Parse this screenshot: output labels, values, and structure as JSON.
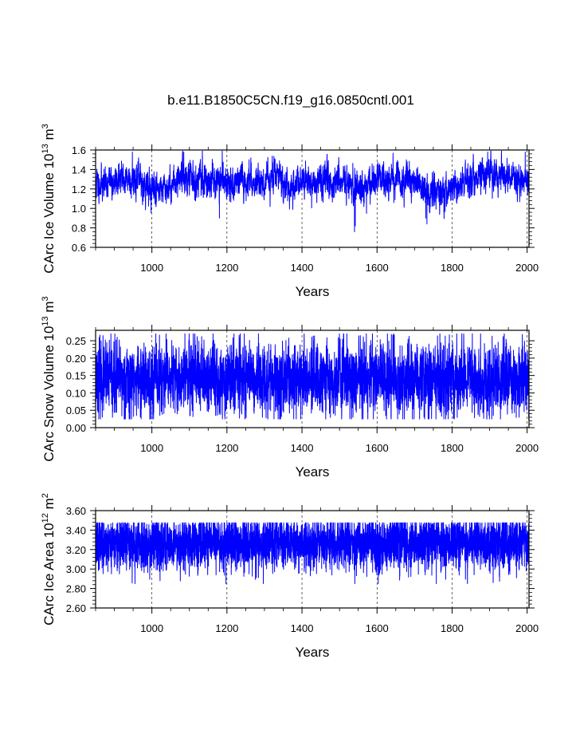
{
  "title": "b.e11.B1850C5CN.f19_g16.0850cntl.001",
  "colors": {
    "series": "#0000ff",
    "axis": "#000000",
    "grid": "#000000"
  },
  "chart_data": [
    {
      "type": "line",
      "title": "b.e11.B1850C5CN.f19_g16.0850cntl.001",
      "xlabel": "Years",
      "ylabel": {
        "main": "CArc Ice Volume 10",
        "exp": "13",
        "unit": " m",
        "unit_exp": "3"
      },
      "xlim": [
        850,
        2005
      ],
      "ylim": [
        0.6,
        1.6
      ],
      "xticks": [
        1000,
        1200,
        1400,
        1600,
        1800,
        2000
      ],
      "xtick_labels": [
        "1000",
        "1200",
        "1400",
        "1600",
        "1800",
        "2000"
      ],
      "yticks": [
        0.6,
        0.8,
        1.0,
        1.2,
        1.4,
        1.6
      ],
      "ytick_labels": [
        "0.6",
        "0.8",
        "1.0",
        "1.2",
        "1.4",
        "1.6"
      ],
      "grid_x": "dashed",
      "series_color": "#0000ff",
      "sampling": {
        "start": 850,
        "end": 2005,
        "step": 0.25,
        "seed": 11
      },
      "signal": {
        "base": 1.27,
        "noise": 0.085,
        "ar": 0.6,
        "clip": [
          0.74,
          1.59
        ],
        "envelope": [
          [
            850,
            1.25
          ],
          [
            900,
            1.27
          ],
          [
            950,
            1.33
          ],
          [
            1000,
            1.2
          ],
          [
            1050,
            1.22
          ],
          [
            1080,
            1.36
          ],
          [
            1100,
            1.3
          ],
          [
            1200,
            1.27
          ],
          [
            1300,
            1.28
          ],
          [
            1330,
            1.36
          ],
          [
            1360,
            1.2
          ],
          [
            1400,
            1.25
          ],
          [
            1450,
            1.27
          ],
          [
            1500,
            1.29
          ],
          [
            1540,
            1.2
          ],
          [
            1600,
            1.3
          ],
          [
            1650,
            1.28
          ],
          [
            1700,
            1.27
          ],
          [
            1740,
            1.14
          ],
          [
            1800,
            1.2
          ],
          [
            1850,
            1.33
          ],
          [
            1900,
            1.35
          ],
          [
            1950,
            1.3
          ],
          [
            2005,
            1.28
          ]
        ],
        "spikes": [
          [
            1540,
            0.76
          ],
          [
            1542,
            0.82
          ],
          [
            1180,
            0.9
          ],
          [
            1733,
            0.84
          ],
          [
            1730,
            0.9
          ],
          [
            1895,
            1.58
          ],
          [
            1085,
            1.58
          ],
          [
            1995,
            1.58
          ],
          [
            948,
            1.58
          ]
        ]
      }
    },
    {
      "type": "line",
      "xlabel": "Years",
      "ylabel": {
        "main": "CArc Snow Volume 10",
        "exp": "13",
        "unit": " m",
        "unit_exp": "3"
      },
      "xlim": [
        850,
        2005
      ],
      "ylim": [
        0.0,
        0.28
      ],
      "xticks": [
        1000,
        1200,
        1400,
        1600,
        1800,
        2000
      ],
      "xtick_labels": [
        "1000",
        "1200",
        "1400",
        "1600",
        "1800",
        "2000"
      ],
      "yticks": [
        0.0,
        0.05,
        0.1,
        0.15,
        0.2,
        0.25
      ],
      "ytick_labels": [
        "0.00",
        "0.05",
        "0.10",
        "0.15",
        "0.20",
        "0.25"
      ],
      "grid_x": "dashed",
      "series_color": "#0000ff",
      "sampling": {
        "start": 850,
        "end": 2005,
        "step": 0.25,
        "seed": 23
      },
      "signal": {
        "base": 0.14,
        "noise": 0.05,
        "ar": 0.25,
        "clip": [
          0.025,
          0.27
        ],
        "envelope": [
          [
            850,
            0.14
          ],
          [
            2005,
            0.14
          ]
        ],
        "spikes": [
          [
            1088,
            0.275
          ],
          [
            895,
            0.03
          ],
          [
            1536,
            0.03
          ]
        ]
      }
    },
    {
      "type": "line",
      "xlabel": "Years",
      "ylabel": {
        "main": "CArc Ice Area 10",
        "exp": "12",
        "unit": " m",
        "unit_exp": "2"
      },
      "xlim": [
        850,
        2005
      ],
      "ylim": [
        2.6,
        3.6
      ],
      "xticks": [
        1000,
        1200,
        1400,
        1600,
        1800,
        2000
      ],
      "xtick_labels": [
        "1000",
        "1200",
        "1400",
        "1600",
        "1800",
        "2000"
      ],
      "yticks": [
        2.6,
        2.8,
        3.0,
        3.2,
        3.4,
        3.6
      ],
      "ytick_labels": [
        "2.60",
        "2.80",
        "3.00",
        "3.20",
        "3.40",
        "3.60"
      ],
      "grid_x": "dashed",
      "series_color": "#0000ff",
      "sampling": {
        "start": 850,
        "end": 2005,
        "step": 0.25,
        "seed": 37
      },
      "signal": {
        "base": 3.26,
        "noise": 0.13,
        "ar": 0.0,
        "clip": [
          2.85,
          3.475
        ],
        "envelope": [
          [
            850,
            3.26
          ],
          [
            2005,
            3.26
          ]
        ],
        "spikes": [
          [
            1541,
            2.71
          ],
          [
            1297,
            2.8
          ],
          [
            955,
            2.82
          ],
          [
            1758,
            2.84
          ]
        ]
      }
    }
  ]
}
